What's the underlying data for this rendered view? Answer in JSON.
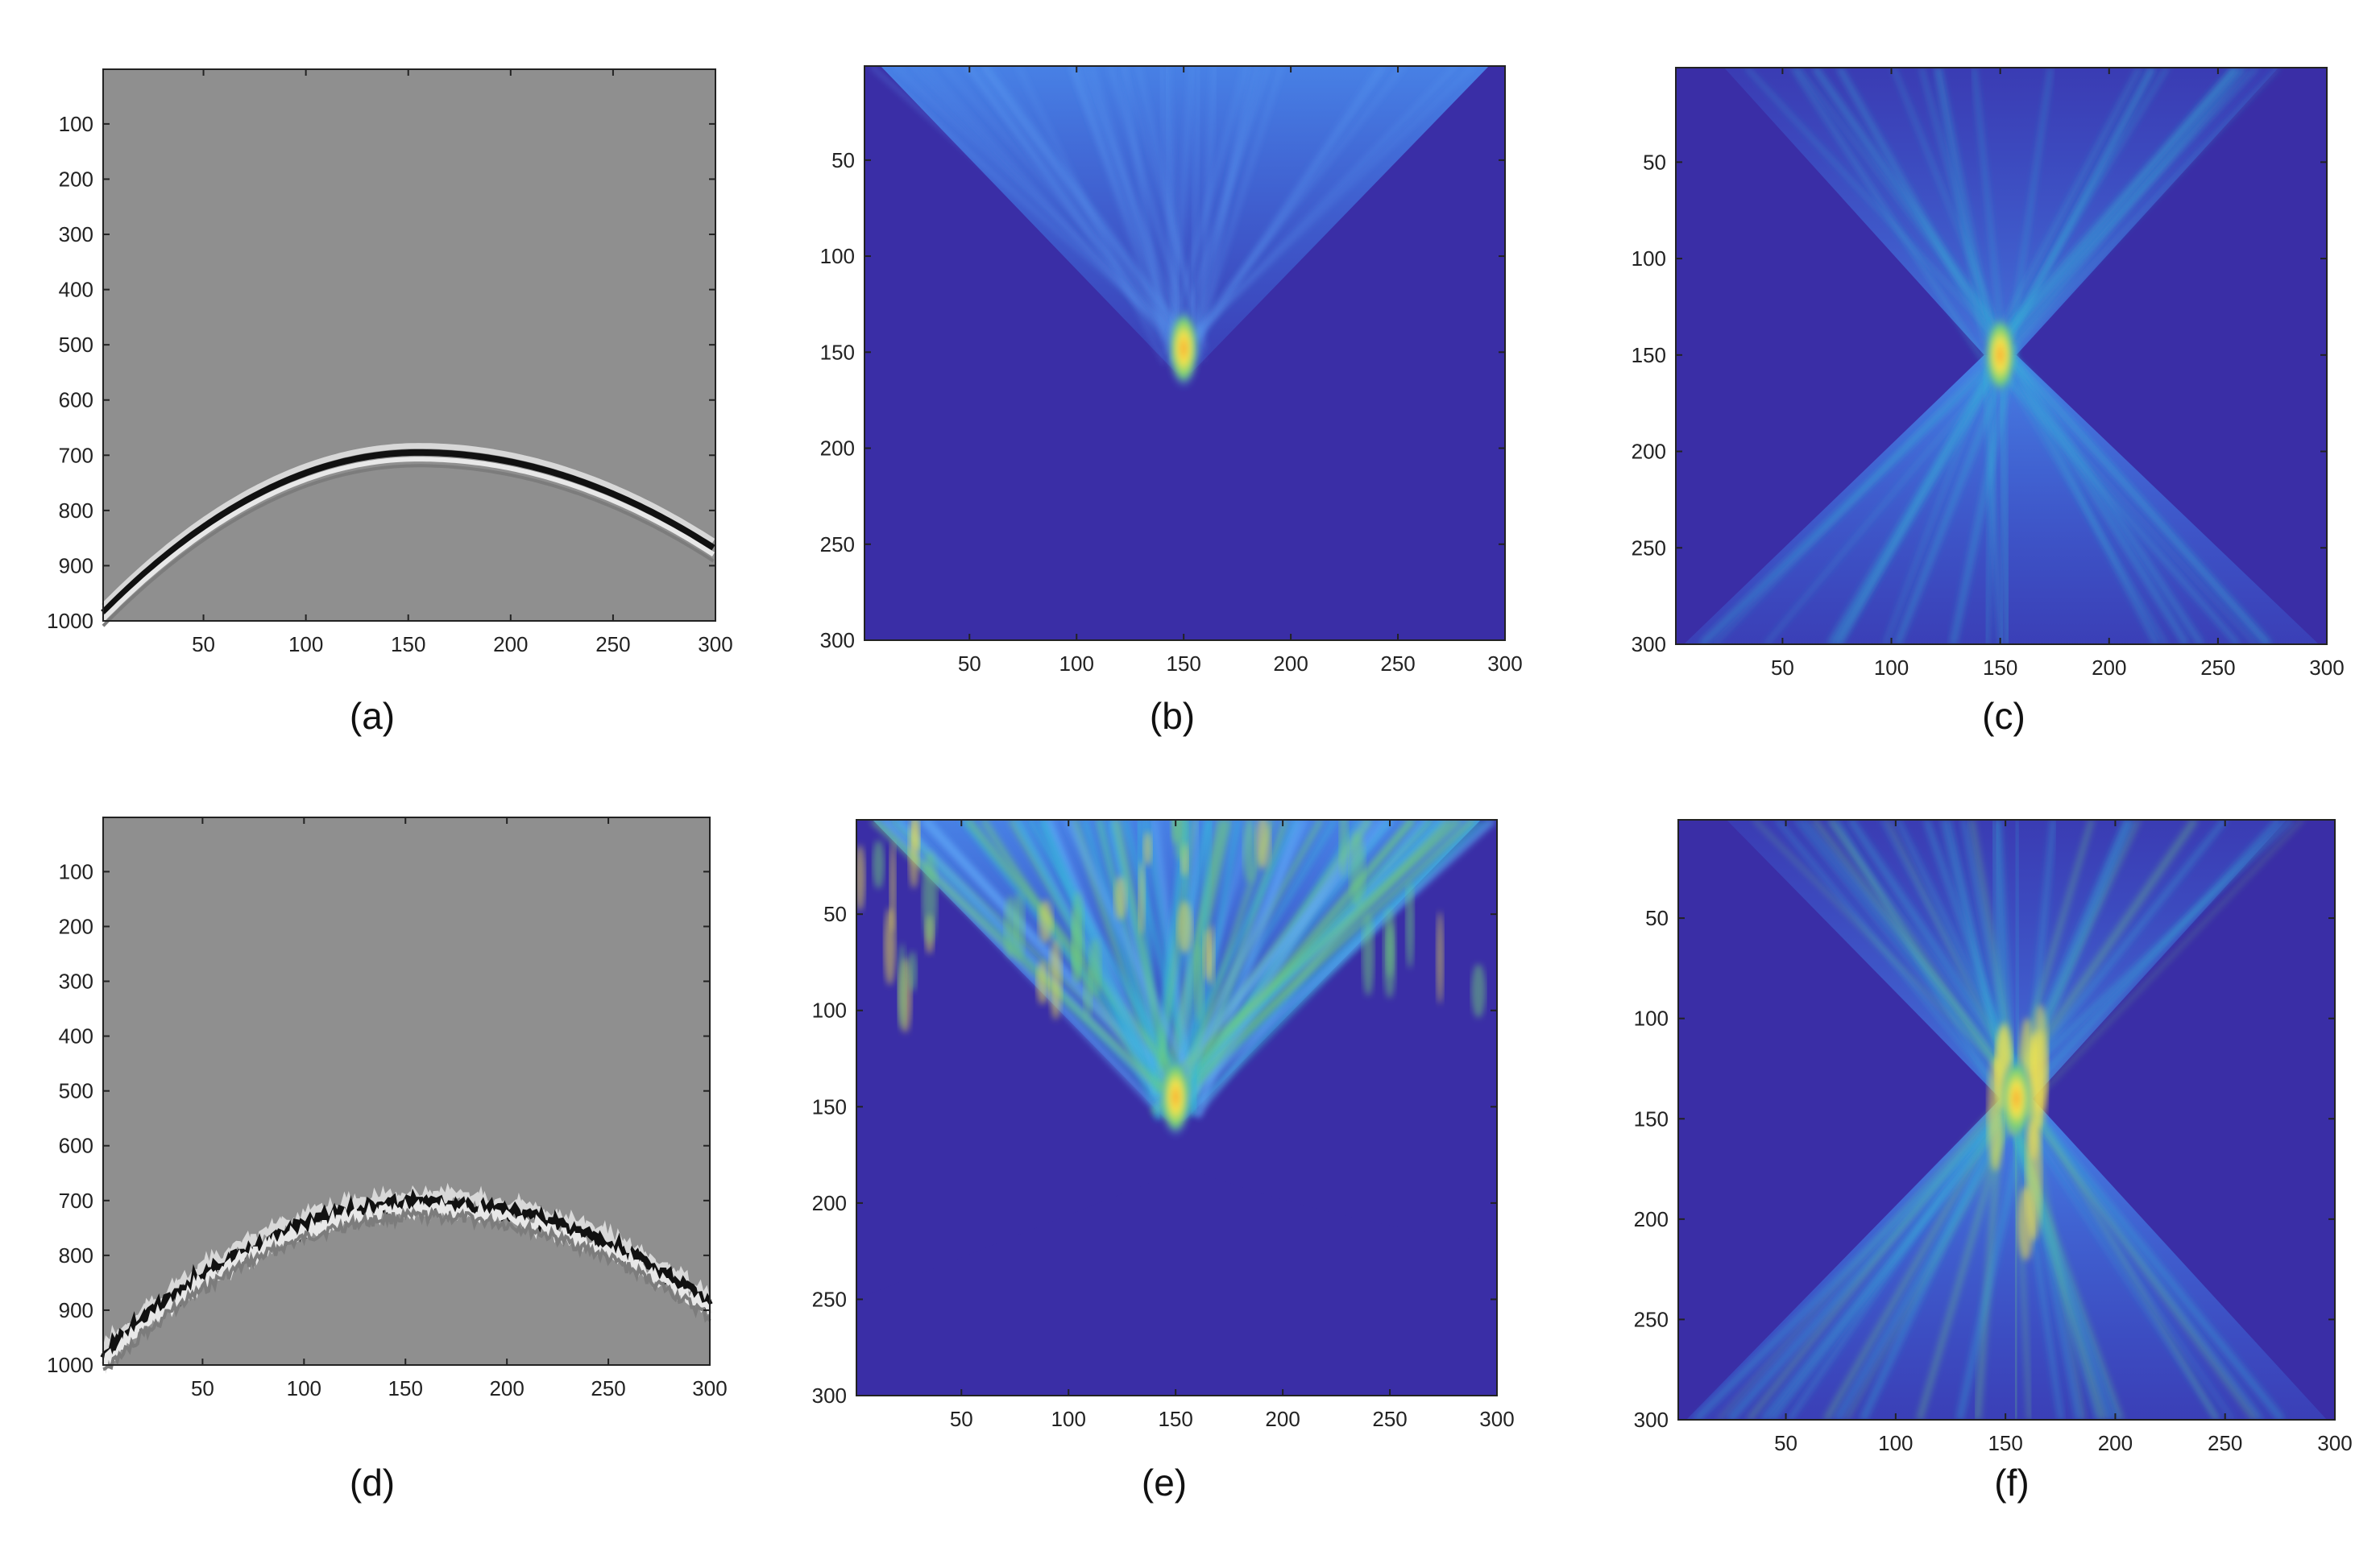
{
  "figure": {
    "panels": [
      {
        "label": "(a)",
        "kind": "seismic",
        "x_ticks": [
          "50",
          "100",
          "150",
          "200",
          "250",
          "300"
        ],
        "y_ticks": [
          "100",
          "200",
          "300",
          "400",
          "500",
          "600",
          "700",
          "800",
          "900",
          "1000"
        ],
        "noise": false
      },
      {
        "label": "(b)",
        "kind": "image",
        "x_ticks": [
          "50",
          "100",
          "150",
          "200",
          "250",
          "300"
        ],
        "y_ticks": [
          "50",
          "100",
          "150",
          "200",
          "250",
          "300"
        ]
      },
      {
        "label": "(c)",
        "kind": "image",
        "x_ticks": [
          "50",
          "100",
          "150",
          "200",
          "250",
          "300"
        ],
        "y_ticks": [
          "50",
          "100",
          "150",
          "200",
          "250",
          "300"
        ]
      },
      {
        "label": "(d)",
        "kind": "seismic",
        "x_ticks": [
          "50",
          "100",
          "150",
          "200",
          "250",
          "300"
        ],
        "y_ticks": [
          "100",
          "200",
          "300",
          "400",
          "500",
          "600",
          "700",
          "800",
          "900",
          "1000"
        ],
        "noise": true
      },
      {
        "label": "(e)",
        "kind": "image",
        "x_ticks": [
          "50",
          "100",
          "150",
          "200",
          "250",
          "300"
        ],
        "y_ticks": [
          "50",
          "100",
          "150",
          "200",
          "250",
          "300"
        ]
      },
      {
        "label": "(f)",
        "kind": "image",
        "x_ticks": [
          "50",
          "100",
          "150",
          "200",
          "250",
          "300"
        ],
        "y_ticks": [
          "50",
          "100",
          "150",
          "200",
          "250",
          "300"
        ]
      }
    ]
  },
  "chart_data": [
    {
      "type": "heatmap",
      "title": "",
      "label": "(a)",
      "description_of_content": "seismic shot gather, gray background with hyperbolic reflection event",
      "xlim": [
        1,
        300
      ],
      "ylim": [
        1000,
        1
      ],
      "event": {
        "apex_x": 155,
        "apex_y": 695,
        "left_end_y": 985,
        "right_end_y": 870
      }
    },
    {
      "type": "heatmap",
      "title": "",
      "label": "(b)",
      "xlim": [
        1,
        300
      ],
      "ylim": [
        300,
        1
      ],
      "focus": {
        "x": 150,
        "y": 148
      },
      "colormap": "parula"
    },
    {
      "type": "heatmap",
      "title": "",
      "label": "(c)",
      "xlim": [
        1,
        300
      ],
      "ylim": [
        300,
        1
      ],
      "focus": {
        "x": 150,
        "y": 150
      },
      "colormap": "parula"
    },
    {
      "type": "heatmap",
      "title": "",
      "label": "(d)",
      "xlim": [
        1,
        300
      ],
      "ylim": [
        1000,
        1
      ],
      "event": {
        "apex_x": 160,
        "apex_y": 705,
        "left_end_y": 985,
        "right_end_y": 890
      }
    },
    {
      "type": "heatmap",
      "title": "",
      "label": "(e)",
      "xlim": [
        1,
        300
      ],
      "ylim": [
        300,
        1
      ],
      "focus": {
        "x": 150,
        "y": 145
      },
      "colormap": "parula"
    },
    {
      "type": "heatmap",
      "title": "",
      "label": "(f)",
      "xlim": [
        1,
        300
      ],
      "ylim": [
        300,
        1
      ],
      "focus": {
        "x": 155,
        "y": 140
      },
      "colormap": "parula"
    }
  ],
  "colors": {
    "seismic_bg": "#8f8f8f",
    "parula_dark": "#3a2ea6",
    "parula_mid": "#3c73e8",
    "parula_cyan": "#34b8d8",
    "parula_green": "#6fd07a",
    "parula_yellow": "#f4e34a",
    "parula_orange": "#f8a430"
  }
}
